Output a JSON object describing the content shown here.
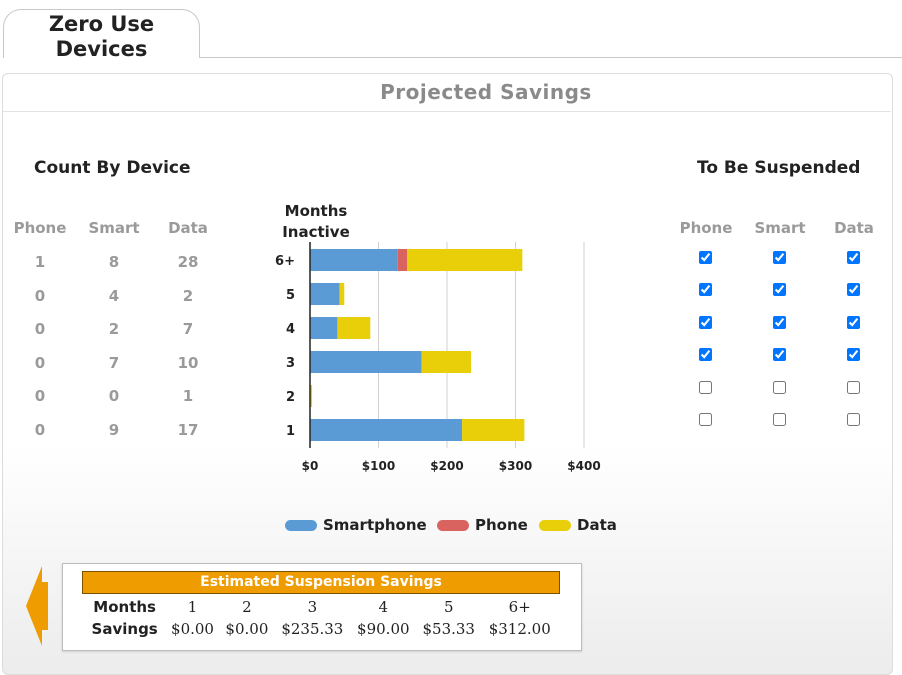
{
  "tab": {
    "line1": "Zero Use",
    "line2": "Devices"
  },
  "panel_title": "Projected Savings",
  "count_by_device": {
    "title": "Count By Device",
    "columns": [
      "Phone",
      "Smart",
      "Data"
    ],
    "rows": [
      [
        "1",
        "8",
        "28"
      ],
      [
        "0",
        "4",
        "2"
      ],
      [
        "0",
        "2",
        "7"
      ],
      [
        "0",
        "7",
        "10"
      ],
      [
        "0",
        "0",
        "1"
      ],
      [
        "0",
        "9",
        "17"
      ]
    ]
  },
  "to_be_suspended": {
    "title": "To Be Suspended",
    "columns": [
      "Phone",
      "Smart",
      "Data"
    ],
    "rows": [
      [
        true,
        true,
        true
      ],
      [
        true,
        true,
        true
      ],
      [
        true,
        true,
        true
      ],
      [
        true,
        true,
        true
      ],
      [
        false,
        false,
        false
      ],
      [
        false,
        false,
        false
      ]
    ]
  },
  "chart_data": {
    "type": "bar",
    "orientation": "horizontal",
    "stacked": true,
    "ylabel": "Months Inactive",
    "categories": [
      "6+",
      "5",
      "4",
      "3",
      "2",
      "1"
    ],
    "series": [
      {
        "name": "Smartphone",
        "color": "#5b9bd5",
        "values": [
          128,
          43,
          40,
          163,
          0,
          222
        ]
      },
      {
        "name": "Phone",
        "color": "#d9635f",
        "values": [
          14,
          0,
          0,
          0,
          0,
          0
        ]
      },
      {
        "name": "Data",
        "color": "#e8cf0a",
        "values": [
          168,
          7,
          48,
          72,
          3,
          91
        ]
      }
    ],
    "xlim": [
      0,
      400
    ],
    "xticks": [
      "$0",
      "$100",
      "$200",
      "$300",
      "$400"
    ],
    "grid": true,
    "legend_position": "bottom"
  },
  "savings": {
    "title": "Estimated Suspension Savings",
    "months_label": "Months",
    "savings_label": "Savings",
    "months": [
      "1",
      "2",
      "3",
      "4",
      "5",
      "6+"
    ],
    "values": [
      "$0.00",
      "$0.00",
      "$235.33",
      "$90.00",
      "$53.33",
      "$312.00"
    ]
  },
  "colors": {
    "accent": "#ee9c00",
    "muted_text": "#9a9a9a"
  },
  "icons": {
    "prev": "left-arrow-icon"
  }
}
